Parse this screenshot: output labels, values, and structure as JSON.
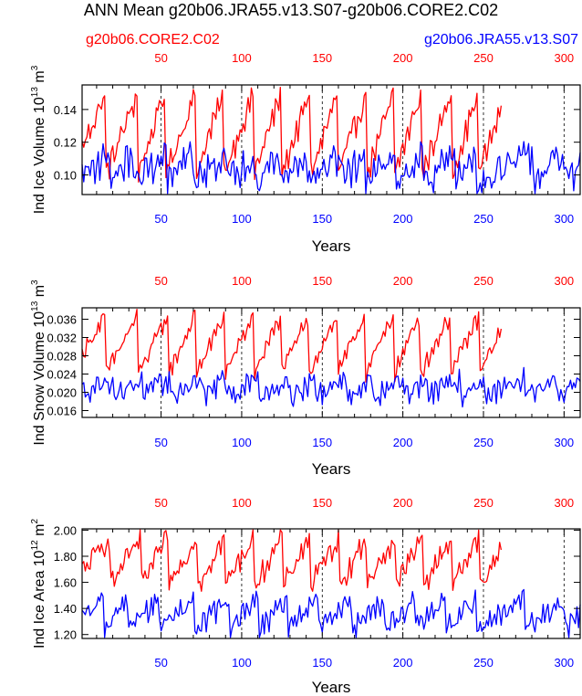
{
  "title": "ANN Mean g20b06.JRA55.v13.S07-g20b06.CORE2.C02",
  "legend": {
    "left": "g20b06.CORE2.C02",
    "right": "g20b06.JRA55.v13.S07"
  },
  "colors": {
    "core2": "#ff0000",
    "jra55": "#0000ff",
    "axis": "#000000"
  },
  "chart_data": [
    {
      "type": "line",
      "ylabel": {
        "text": "Ind Ice Volume 10",
        "exp": "13",
        "unit": " m",
        "unit_exp": "3"
      },
      "xlabel": "Years",
      "xlim": [
        1,
        310
      ],
      "ylim": [
        0.088,
        0.155
      ],
      "yticks": [
        "0.10",
        "0.12",
        "0.14"
      ],
      "ytick_values": [
        0.1,
        0.12,
        0.14
      ],
      "xticks_top": [
        "50",
        "100",
        "150",
        "200",
        "250",
        "300"
      ],
      "xticks_bottom": [
        "50",
        "100",
        "150",
        "200",
        "250",
        "300"
      ],
      "xtick_values": [
        50,
        100,
        150,
        200,
        250,
        300
      ],
      "dashed_x": [
        50,
        100,
        150,
        200,
        250,
        300
      ],
      "series": [
        {
          "name": "g20b06.CORE2.C02",
          "color": "core2",
          "x_start": 1,
          "x_end": 261,
          "base": 0.1,
          "amp": 0.05,
          "jitter": 0.006,
          "peaks": [
            15,
            35,
            52,
            71,
            88,
            107,
            124,
            142,
            159,
            177,
            194,
            211,
            230,
            246
          ]
        },
        {
          "name": "g20b06.JRA55.v13.S07",
          "color": "jra55",
          "x_start": 1,
          "x_end": 310,
          "base": 0.097,
          "amp": 0.018,
          "jitter": 0.008,
          "peaks": [
            18,
            32,
            53,
            69,
            90,
            108,
            123,
            140,
            162,
            176,
            195,
            212,
            232,
            245,
            280,
            300
          ]
        }
      ]
    },
    {
      "type": "line",
      "ylabel": {
        "text": "Ind Snow Volume 10",
        "exp": "13",
        "unit": " m",
        "unit_exp": "3"
      },
      "xlabel": "Years",
      "xlim": [
        1,
        310
      ],
      "ylim": [
        0.0145,
        0.0385
      ],
      "yticks": [
        "0.016",
        "0.020",
        "0.024",
        "0.028",
        "0.032",
        "0.036"
      ],
      "ytick_values": [
        0.016,
        0.02,
        0.024,
        0.028,
        0.032,
        0.036
      ],
      "xticks_top": [
        "50",
        "100",
        "150",
        "200",
        "250",
        "300"
      ],
      "xticks_bottom": [
        "50",
        "100",
        "150",
        "200",
        "250",
        "300"
      ],
      "xtick_values": [
        50,
        100,
        150,
        200,
        250,
        300
      ],
      "dashed_x": [
        50,
        100,
        150,
        200,
        250,
        300
      ],
      "series": [
        {
          "name": "g20b06.CORE2.C02",
          "color": "core2",
          "x_start": 1,
          "x_end": 261,
          "base": 0.024,
          "amp": 0.013,
          "jitter": 0.0015,
          "peaks": [
            15,
            35,
            54,
            71,
            89,
            107,
            124,
            141,
            159,
            176,
            194,
            210,
            229,
            247
          ]
        },
        {
          "name": "g20b06.JRA55.v13.S07",
          "color": "jra55",
          "x_start": 1,
          "x_end": 310,
          "base": 0.0195,
          "amp": 0.004,
          "jitter": 0.002,
          "peaks": [
            20,
            38,
            55,
            75,
            90,
            110,
            130,
            145,
            165,
            180,
            200,
            215,
            235,
            250,
            275,
            295
          ]
        }
      ]
    },
    {
      "type": "line",
      "ylabel": {
        "text": "Ind Ice Area 10",
        "exp": "12",
        "unit": " m",
        "unit_exp": "2"
      },
      "xlabel": "Years",
      "xlim": [
        1,
        310
      ],
      "ylim": [
        1.17,
        2.01
      ],
      "yticks": [
        "1.20",
        "1.40",
        "1.60",
        "1.80",
        "2.00"
      ],
      "ytick_values": [
        1.2,
        1.4,
        1.6,
        1.8,
        2.0
      ],
      "xticks_top": [
        "50",
        "100",
        "150",
        "200",
        "250",
        "300"
      ],
      "xticks_bottom": [
        "50",
        "100",
        "150",
        "200",
        "250",
        "300"
      ],
      "xtick_values": [
        50,
        100,
        150,
        200,
        250,
        300
      ],
      "dashed_x": [
        50,
        100,
        150,
        200,
        250,
        300
      ],
      "series": [
        {
          "name": "g20b06.CORE2.C02",
          "color": "core2",
          "x_start": 1,
          "x_end": 261,
          "base": 1.58,
          "amp": 0.38,
          "jitter": 0.07,
          "peaks": [
            18,
            37,
            54,
            72,
            89,
            107,
            125,
            142,
            160,
            177,
            195,
            212,
            230,
            247
          ]
        },
        {
          "name": "g20b06.JRA55.v13.S07",
          "color": "jra55",
          "x_start": 1,
          "x_end": 310,
          "base": 1.26,
          "amp": 0.22,
          "jitter": 0.07,
          "peaks": [
            14,
            29,
            48,
            70,
            92,
            110,
            128,
            147,
            168,
            188,
            207,
            226,
            245,
            275,
            300
          ]
        }
      ]
    }
  ]
}
